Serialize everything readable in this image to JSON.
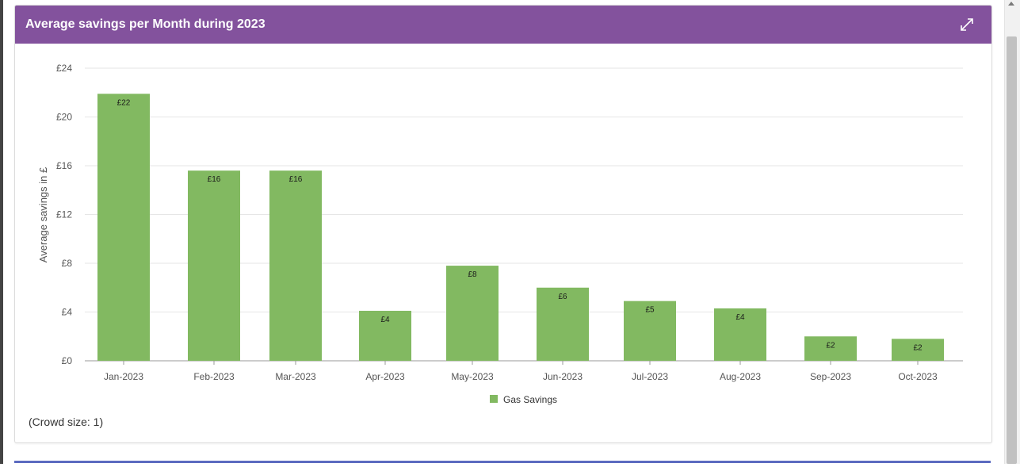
{
  "panel": {
    "title": "Average savings per Month during 2023",
    "header_color": "#83529d",
    "crowd_size_text": "(Crowd size: 1)"
  },
  "icons": {
    "expand": "expand-arrows-icon"
  },
  "chart_data": {
    "type": "bar",
    "categories": [
      "Jan-2023",
      "Feb-2023",
      "Mar-2023",
      "Apr-2023",
      "May-2023",
      "Jun-2023",
      "Jul-2023",
      "Aug-2023",
      "Sep-2023",
      "Oct-2023"
    ],
    "series": [
      {
        "name": "Gas Savings",
        "color": "#82b961",
        "values": [
          21.9,
          15.6,
          15.6,
          4.1,
          7.8,
          6.0,
          4.9,
          4.3,
          2.0,
          1.8
        ],
        "labels": [
          "£22",
          "£16",
          "£16",
          "£4",
          "£8",
          "£6",
          "£5",
          "£4",
          "£2",
          "£2"
        ]
      }
    ],
    "ylabel": "Average savings in £",
    "xlabel": "",
    "ylim": [
      0,
      24
    ],
    "yticks": [
      0,
      4,
      8,
      12,
      16,
      20,
      24
    ],
    "ytick_labels": [
      "£0",
      "£4",
      "£8",
      "£12",
      "£16",
      "£20",
      "£24"
    ],
    "grid": true,
    "legend_position": "bottom-center"
  }
}
